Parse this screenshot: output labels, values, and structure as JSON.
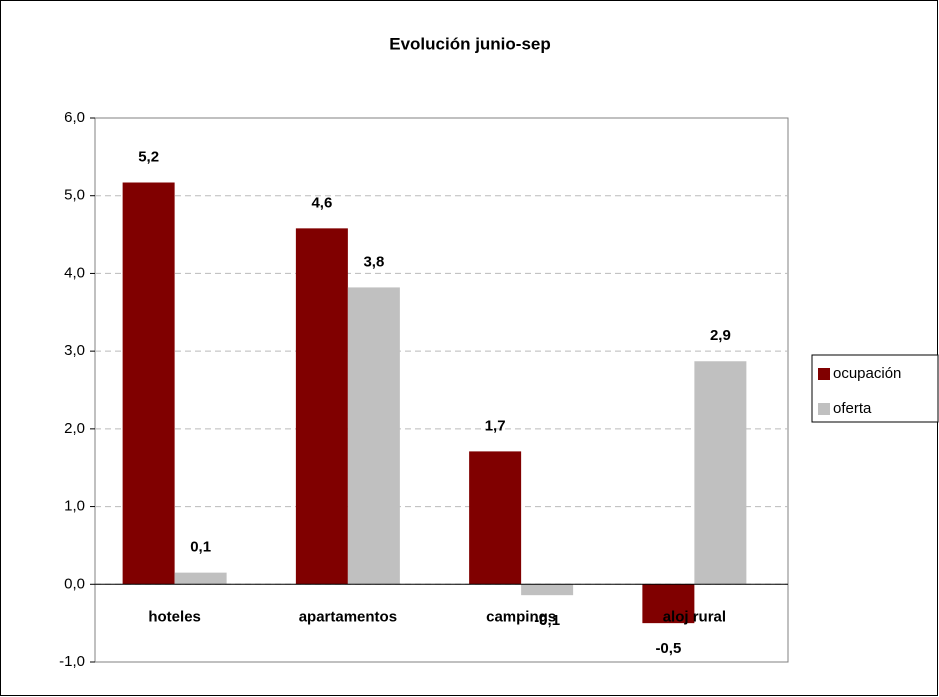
{
  "chart_data": {
    "type": "bar",
    "title": "Evolución junio-sep",
    "categories": [
      "hoteles",
      "apartamentos",
      "campings",
      "aloj rural"
    ],
    "series": [
      {
        "name": "ocupación",
        "color": "#800000",
        "values": [
          5.17,
          4.58,
          1.71,
          -0.5
        ],
        "value_labels": [
          "5,2",
          "4,6",
          "1,7",
          "-0,5"
        ]
      },
      {
        "name": "oferta",
        "color": "#c0c0c0",
        "values": [
          0.15,
          3.82,
          -0.14,
          2.87
        ],
        "value_labels": [
          "0,1",
          "3,8",
          "-0,1",
          "2,9"
        ]
      }
    ],
    "ylim": [
      -1,
      6
    ],
    "yticks": [
      {
        "value": -1,
        "label": "-1,0"
      },
      {
        "value": 0,
        "label": "0,0"
      },
      {
        "value": 1,
        "label": "1,0"
      },
      {
        "value": 2,
        "label": "2,0"
      },
      {
        "value": 3,
        "label": "3,0"
      },
      {
        "value": 4,
        "label": "4,0"
      },
      {
        "value": 5,
        "label": "5,0"
      },
      {
        "value": 6,
        "label": "6,0"
      }
    ],
    "grid": true,
    "legend": "right"
  }
}
